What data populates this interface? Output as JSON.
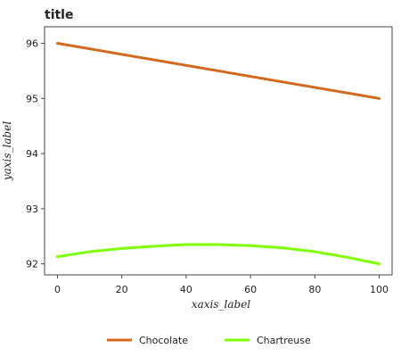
{
  "chart_data": {
    "type": "line",
    "title": "title",
    "xlabel": "xaxis_label",
    "ylabel": "yaxis_label",
    "xlim": [
      -4,
      104
    ],
    "ylim": [
      91.8,
      96.3
    ],
    "xticks": [
      0,
      20,
      40,
      60,
      80,
      100
    ],
    "xtick_labels": [
      "0",
      "20",
      "40",
      "60",
      "80",
      "100"
    ],
    "yticks": [
      92,
      93,
      94,
      95,
      96
    ],
    "ytick_labels": [
      "92",
      "93",
      "94",
      "95",
      "96"
    ],
    "grid": false,
    "legend_position": "bottom",
    "series": [
      {
        "name": "Chocolate",
        "color": "#D2691E",
        "x": [
          0,
          100
        ],
        "y": [
          96.0,
          95.0
        ]
      },
      {
        "name": "Chartreuse",
        "color": "#7FFF00",
        "x": [
          0,
          10,
          20,
          30,
          40,
          50,
          60,
          70,
          80,
          90,
          100
        ],
        "y": [
          92.13,
          92.22,
          92.28,
          92.32,
          92.35,
          92.35,
          92.33,
          92.29,
          92.22,
          92.12,
          92.0
        ]
      }
    ]
  }
}
